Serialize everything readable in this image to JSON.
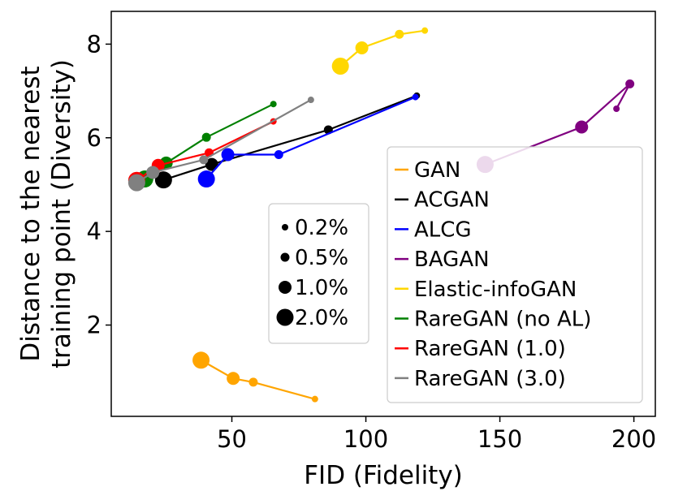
{
  "chart_data": {
    "type": "scatter",
    "xlabel": "FID (Fidelity)",
    "ylabel_lines": [
      "Distance to the nearest",
      "training point (Diversity)"
    ],
    "xlim": [
      5,
      208
    ],
    "ylim": [
      0.05,
      8.7
    ],
    "xticks": [
      50,
      100,
      150,
      200
    ],
    "yticks": [
      2,
      4,
      6,
      8
    ],
    "grid": false,
    "size_legend": {
      "placement": "center",
      "entries": [
        {
          "label": "0.2%",
          "frac": 0.2
        },
        {
          "label": "0.5%",
          "frac": 0.5
        },
        {
          "label": "1.0%",
          "frac": 1.0
        },
        {
          "label": "2.0%",
          "frac": 2.0
        }
      ]
    },
    "legend": {
      "placement": "lower-right"
    },
    "series": [
      {
        "name": "GAN",
        "color": "#ffa500",
        "points": [
          {
            "x": 81,
            "y": 0.42,
            "frac": 0.2
          },
          {
            "x": 58,
            "y": 0.78,
            "frac": 0.5
          },
          {
            "x": 50.5,
            "y": 0.86,
            "frac": 1.0
          },
          {
            "x": 38.5,
            "y": 1.25,
            "frac": 2.0
          }
        ]
      },
      {
        "name": "ACGAN",
        "color": "#000000",
        "points": [
          {
            "x": 119,
            "y": 6.9,
            "frac": 0.2
          },
          {
            "x": 86,
            "y": 6.17,
            "frac": 0.5
          },
          {
            "x": 42.5,
            "y": 5.43,
            "frac": 1.0
          },
          {
            "x": 24.5,
            "y": 5.1,
            "frac": 2.0
          }
        ]
      },
      {
        "name": "ALCG",
        "color": "#0000ff",
        "points": [
          {
            "x": 118.5,
            "y": 6.87,
            "frac": 0.2
          },
          {
            "x": 67.5,
            "y": 5.64,
            "frac": 0.5
          },
          {
            "x": 48.5,
            "y": 5.64,
            "frac": 1.0
          },
          {
            "x": 40.5,
            "y": 5.12,
            "frac": 2.0
          }
        ]
      },
      {
        "name": "BAGAN",
        "color": "#800080",
        "points": [
          {
            "x": 193.5,
            "y": 6.62,
            "frac": 0.2
          },
          {
            "x": 198.5,
            "y": 7.15,
            "frac": 0.5
          },
          {
            "x": 180.5,
            "y": 6.23,
            "frac": 1.0
          },
          {
            "x": 144.5,
            "y": 5.43,
            "frac": 2.0
          }
        ]
      },
      {
        "name": "Elastic-infoGAN",
        "color": "#ffd700",
        "points": [
          {
            "x": 122,
            "y": 8.29,
            "frac": 0.2
          },
          {
            "x": 112.5,
            "y": 8.21,
            "frac": 0.5
          },
          {
            "x": 98.5,
            "y": 7.92,
            "frac": 1.0
          },
          {
            "x": 90.5,
            "y": 7.53,
            "frac": 2.0
          }
        ]
      },
      {
        "name": "RareGAN (no AL)",
        "color": "#008000",
        "points": [
          {
            "x": 65.5,
            "y": 6.72,
            "frac": 0.2
          },
          {
            "x": 40.5,
            "y": 6.01,
            "frac": 0.5
          },
          {
            "x": 25.5,
            "y": 5.46,
            "frac": 1.0
          },
          {
            "x": 17.5,
            "y": 5.12,
            "frac": 2.0
          }
        ]
      },
      {
        "name": "RareGAN (1.0)",
        "color": "#ff0000",
        "points": [
          {
            "x": 65.5,
            "y": 6.35,
            "frac": 0.2
          },
          {
            "x": 41.5,
            "y": 5.68,
            "frac": 0.5
          },
          {
            "x": 22.5,
            "y": 5.41,
            "frac": 1.0
          },
          {
            "x": 14.5,
            "y": 5.09,
            "frac": 2.0
          }
        ]
      },
      {
        "name": "RareGAN (3.0)",
        "color": "#808080",
        "points": [
          {
            "x": 79.5,
            "y": 6.81,
            "frac": 0.2
          },
          {
            "x": 39.5,
            "y": 5.53,
            "frac": 0.5
          },
          {
            "x": 20.5,
            "y": 5.26,
            "frac": 1.0
          },
          {
            "x": 14.5,
            "y": 5.04,
            "frac": 2.0
          }
        ]
      }
    ]
  }
}
